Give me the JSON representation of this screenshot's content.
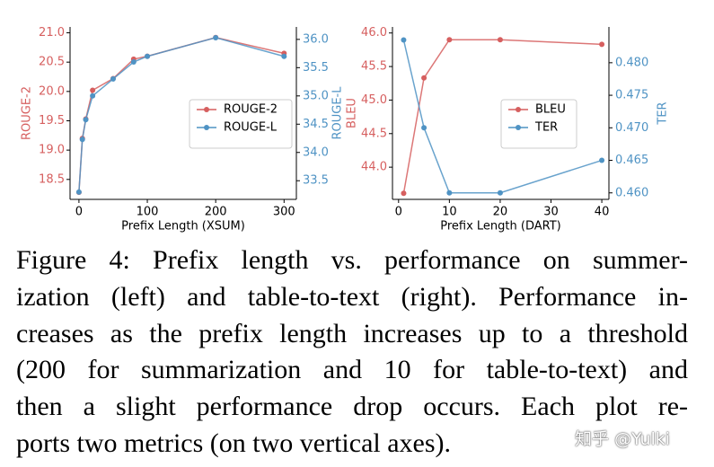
{
  "chart_data": [
    {
      "type": "line",
      "xlabel": "Prefix Length (XSUM)",
      "ylabel": "ROUGE-2",
      "y2label": "ROUGE-L",
      "x": [
        0,
        5,
        10,
        20,
        50,
        80,
        100,
        200,
        300
      ],
      "series": [
        {
          "name": "ROUGE-2",
          "color": "#d65f5f",
          "values": [
            18.28,
            19.2,
            19.53,
            20.02,
            20.22,
            20.55,
            20.6,
            20.92,
            20.65
          ]
        },
        {
          "name": "ROUGE-L",
          "color": "#4f93c4",
          "axis": "y2",
          "values": [
            33.3,
            34.23,
            34.58,
            35.0,
            35.3,
            35.6,
            35.7,
            36.03,
            35.7
          ]
        }
      ],
      "xlim": [
        -13,
        318
      ],
      "xticks": [
        0,
        100,
        200,
        300
      ],
      "ylim": [
        18.16,
        21.1
      ],
      "yticks": [
        18.5,
        {
          "value": 19,
          "label": "19.0"
        },
        19.5,
        {
          "value": 20,
          "label": "20.0"
        },
        20.5,
        {
          "value": 21,
          "label": "21.0"
        }
      ],
      "y2lim": [
        33.17,
        36.22
      ],
      "y2ticks": [
        33.5,
        {
          "value": 34,
          "label": "34.0"
        },
        34.5,
        {
          "value": 35,
          "label": "35.0"
        },
        35.5,
        {
          "value": 36,
          "label": "36.0"
        }
      ],
      "legend": "center right"
    },
    {
      "type": "line",
      "xlabel": "Prefix Length (DART)",
      "ylabel": "BLEU",
      "y2label": "TER",
      "x": [
        1,
        5,
        10,
        20,
        40
      ],
      "series": [
        {
          "name": "BLEU",
          "color": "#d65f5f",
          "values": [
            43.61,
            45.33,
            45.9,
            45.9,
            45.83
          ]
        },
        {
          "name": "TER",
          "color": "#4f93c4",
          "axis": "y2",
          "values": [
            0.4835,
            0.47,
            0.46,
            0.46,
            0.465
          ]
        }
      ],
      "xlim": [
        -1.2,
        41.4
      ],
      "xticks": [
        0,
        10,
        20,
        30,
        40
      ],
      "ylim": [
        43.52,
        46.09
      ],
      "yticks": [
        {
          "value": 44,
          "label": "44.0"
        },
        44.5,
        {
          "value": 45,
          "label": "45.0"
        },
        45.5,
        {
          "value": 46,
          "label": "46.0"
        }
      ],
      "y2lim": [
        0.459,
        0.4855
      ],
      "y2ticks": [
        {
          "value": 0.46,
          "label": "0.460"
        },
        0.465,
        {
          "value": 0.47,
          "label": "0.470"
        },
        0.475,
        {
          "value": 0.48,
          "label": "0.480"
        }
      ],
      "legend": "center right"
    }
  ],
  "caption": {
    "lines": [
      "Figure 4:  Prefix length vs. performance on summer-",
      "ization (left) and table-to-text (right).  Performance in-",
      "creases as the prefix length increases up to a threshold",
      "(200 for summarization and 10 for table-to-text) and",
      "then a slight performance drop occurs.  Each plot re-",
      "ports two metrics (on two vertical axes)."
    ]
  },
  "watermark": "知乎 @Yulki"
}
